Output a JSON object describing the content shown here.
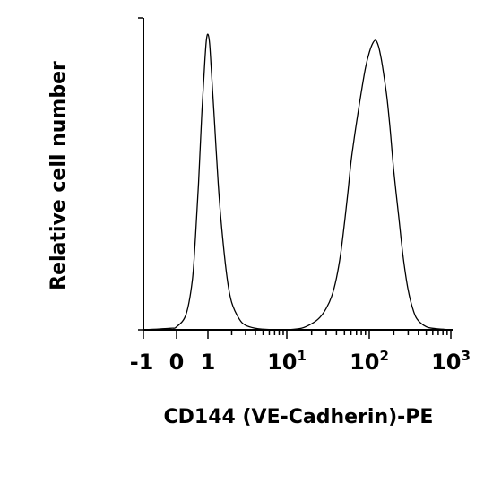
{
  "chart_data": {
    "type": "line",
    "title": "",
    "xlabel": "CD144 (VE-Cadherin)-PE",
    "ylabel": "Relative cell number",
    "x_scale": "biexponential",
    "xlim": [
      -1,
      1000
    ],
    "ylim": [
      0,
      100
    ],
    "grid": false,
    "legend": "none",
    "x_tick_labels": [
      {
        "value": -1,
        "base": "-1",
        "sup": ""
      },
      {
        "value": 0,
        "base": "0",
        "sup": ""
      },
      {
        "value": 1,
        "base": "1",
        "sup": ""
      },
      {
        "value": 10,
        "base": "10",
        "sup": "1"
      },
      {
        "value": 100,
        "base": "10",
        "sup": "2"
      },
      {
        "value": 1000,
        "base": "10",
        "sup": "3"
      }
    ],
    "x_minor_ticks": [
      2,
      3,
      4,
      5,
      6,
      7,
      8,
      9,
      20,
      30,
      40,
      50,
      60,
      70,
      80,
      90,
      200,
      300,
      400,
      500,
      600,
      700,
      800,
      900
    ],
    "series": [
      {
        "x": [
          -1,
          -0.2,
          0,
          0.3,
          0.5,
          0.6,
          0.7,
          0.8,
          0.9,
          0.95,
          1.0,
          1.05,
          1.1,
          1.2,
          1.35,
          1.5,
          1.75,
          2.0,
          2.5,
          3.0,
          4.0,
          5.0,
          7.0,
          10
        ],
        "y": [
          0,
          0.5,
          1,
          5,
          16,
          30,
          48,
          70,
          88,
          95,
          97,
          94,
          86,
          70,
          48,
          33,
          17,
          9,
          3.5,
          1.5,
          0.5,
          0.2,
          0,
          0
        ]
      },
      {
        "x": [
          10,
          15,
          20,
          25,
          30,
          35,
          40,
          45,
          50,
          55,
          60,
          65,
          70,
          80,
          90,
          100,
          110,
          120,
          130,
          140,
          150,
          165,
          180,
          200,
          230,
          260,
          300,
          350,
          400,
          500,
          600,
          800,
          1000
        ],
        "y": [
          0,
          0.5,
          2,
          4,
          7,
          11,
          17,
          25,
          35,
          45,
          55,
          62,
          68,
          78,
          86,
          91,
          94,
          95,
          93,
          89,
          84,
          76,
          66,
          52,
          37,
          24,
          13,
          6,
          3,
          1,
          0.5,
          0.2,
          0
        ]
      }
    ]
  }
}
